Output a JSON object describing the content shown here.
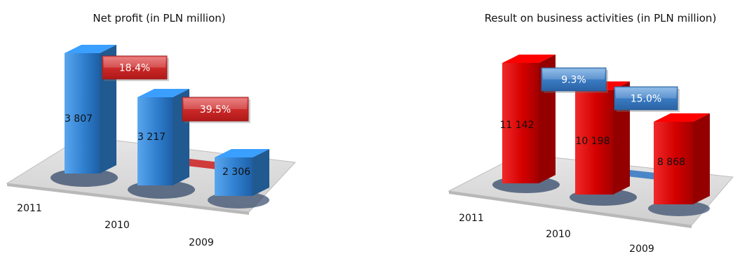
{
  "chart_data": [
    {
      "type": "bar",
      "title": "Net profit (in PLN million)",
      "categories": [
        "2011",
        "2010",
        "2009"
      ],
      "values": [
        3807,
        3217,
        2306
      ],
      "value_labels": [
        "3 807",
        "3 217",
        "2 306"
      ],
      "growth_labels": [
        "18.4%",
        "39.5%"
      ],
      "bar_color": "#2f7fcf",
      "badge_color": "#cc2a2a",
      "ylim": [
        0,
        3807
      ],
      "grid": false,
      "style": "3d-columns"
    },
    {
      "type": "bar",
      "title": "Result on business activities (in PLN million)",
      "categories": [
        "2011",
        "2010",
        "2009"
      ],
      "values": [
        11142,
        10198,
        8868
      ],
      "value_labels": [
        "11 142",
        "10 198",
        "8 868"
      ],
      "growth_labels": [
        "9.3%",
        "15.0%"
      ],
      "bar_color": "#d40000",
      "badge_color": "#3a7cc4",
      "ylim": [
        0,
        11142
      ],
      "grid": false,
      "style": "3d-columns"
    }
  ]
}
